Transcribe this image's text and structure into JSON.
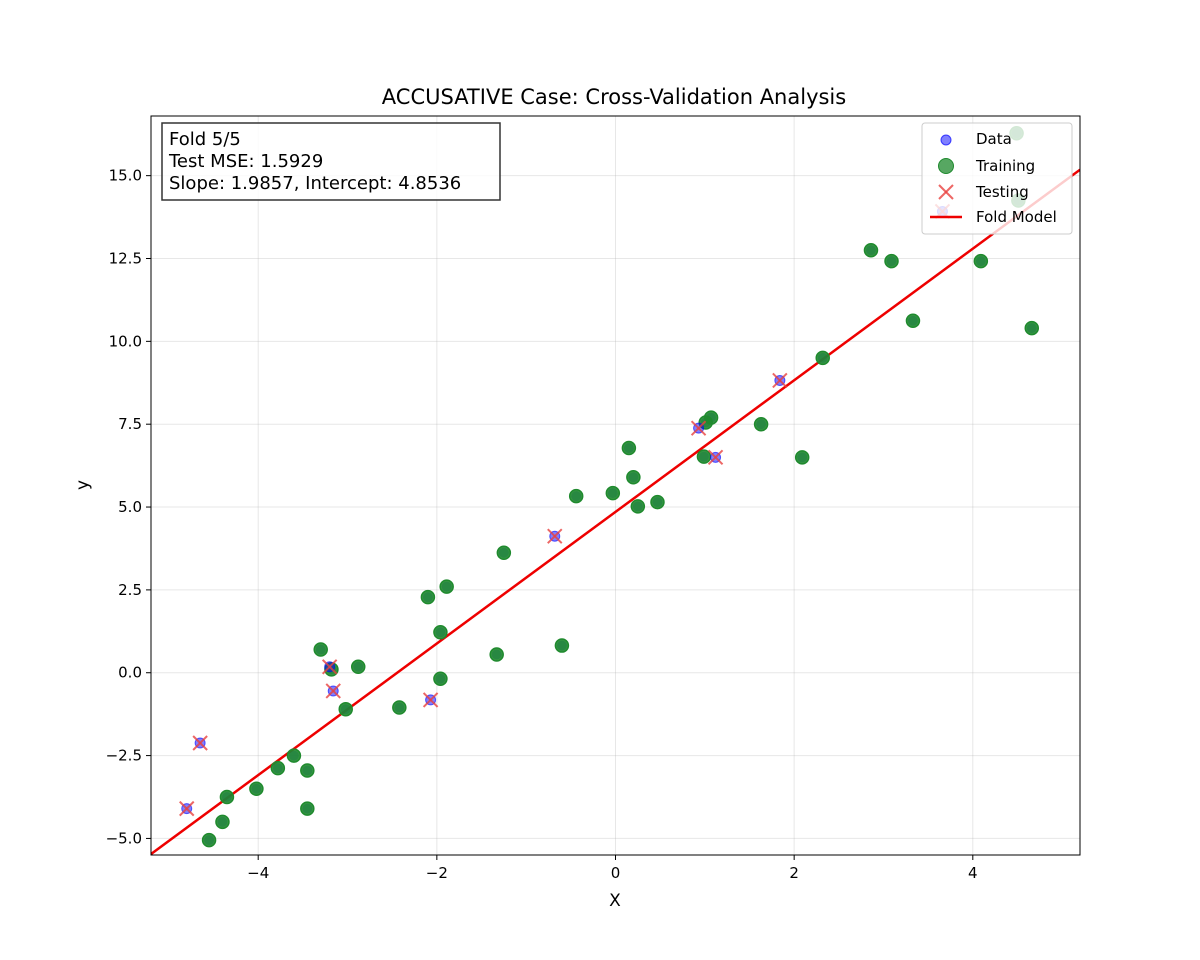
{
  "chart_data": {
    "type": "scatter",
    "title": "ACCUSATIVE Case: Cross-Validation Analysis",
    "xlabel": "X",
    "ylabel": "y",
    "xlim": [
      -5.2,
      5.2
    ],
    "ylim": [
      -5.5,
      16.8
    ],
    "grid": true,
    "legend_position": "top-right",
    "xticks": [
      -4,
      -2,
      0,
      2,
      4
    ],
    "xtick_labels": [
      "−4",
      "−2",
      "0",
      "2",
      "4"
    ],
    "yticks": [
      -5.0,
      -2.5,
      0.0,
      2.5,
      5.0,
      7.5,
      10.0,
      12.5,
      15.0
    ],
    "ytick_labels": [
      "−5.0",
      "−2.5",
      "0.0",
      "2.5",
      "5.0",
      "7.5",
      "10.0",
      "12.5",
      "15.0"
    ],
    "info_box": {
      "line1": "Fold 5/5",
      "line2": "Test MSE: 1.5929",
      "line3": "Slope: 1.9857, Intercept: 4.8536"
    },
    "series": [
      {
        "name": "Data",
        "color": "#0000ff",
        "marker": "circle"
      },
      {
        "name": "Training",
        "color": "#1f8a2e",
        "marker": "circle",
        "points": [
          [
            -4.55,
            -5.05
          ],
          [
            -4.4,
            -4.5
          ],
          [
            -4.35,
            -3.75
          ],
          [
            -4.02,
            -3.5
          ],
          [
            -3.78,
            -2.88
          ],
          [
            -3.6,
            -2.5
          ],
          [
            -3.45,
            -2.95
          ],
          [
            -3.45,
            -4.1
          ],
          [
            -3.3,
            0.7
          ],
          [
            -3.18,
            0.1
          ],
          [
            -3.02,
            -1.1
          ],
          [
            -2.88,
            0.18
          ],
          [
            -2.42,
            -1.05
          ],
          [
            -2.1,
            2.28
          ],
          [
            -1.96,
            -0.18
          ],
          [
            -1.96,
            1.22
          ],
          [
            -1.89,
            2.6
          ],
          [
            -1.33,
            0.55
          ],
          [
            -1.25,
            3.62
          ],
          [
            -0.6,
            0.82
          ],
          [
            -0.44,
            5.33
          ],
          [
            -0.03,
            5.42
          ],
          [
            0.15,
            6.78
          ],
          [
            0.2,
            5.9
          ],
          [
            0.25,
            5.02
          ],
          [
            0.47,
            5.15
          ],
          [
            0.99,
            6.52
          ],
          [
            1.01,
            7.55
          ],
          [
            1.07,
            7.7
          ],
          [
            1.63,
            7.5
          ],
          [
            2.09,
            6.5
          ],
          [
            2.32,
            9.5
          ],
          [
            2.86,
            12.75
          ],
          [
            3.09,
            12.42
          ],
          [
            3.33,
            10.62
          ],
          [
            4.09,
            12.42
          ],
          [
            4.49,
            16.28
          ],
          [
            4.51,
            14.25
          ],
          [
            4.66,
            10.4
          ]
        ]
      },
      {
        "name": "Testing",
        "color": "#e8413e",
        "marker": "x",
        "points": [
          [
            -4.8,
            -4.1
          ],
          [
            -4.65,
            -2.12
          ],
          [
            -3.2,
            0.18
          ],
          [
            -3.16,
            -0.55
          ],
          [
            -2.07,
            -0.82
          ],
          [
            -0.68,
            4.12
          ],
          [
            0.93,
            7.38
          ],
          [
            1.12,
            6.5
          ],
          [
            1.84,
            8.82
          ],
          [
            3.66,
            13.92
          ]
        ]
      },
      {
        "name": "Fold Model",
        "color": "#ee0000",
        "type": "line",
        "slope": 1.9857,
        "intercept": 4.8536
      }
    ]
  }
}
